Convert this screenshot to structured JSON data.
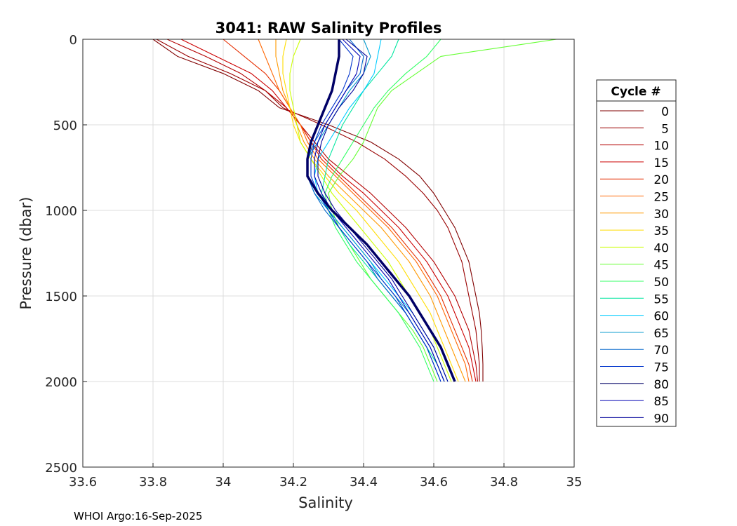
{
  "chart_data": {
    "type": "line",
    "title": "3041: RAW Salinity Profiles",
    "xlabel": "Salinity",
    "ylabel": "Pressure (dbar)",
    "xlim": [
      33.6,
      35
    ],
    "ylim": [
      0,
      2500
    ],
    "y_reversed": true,
    "grid": true,
    "xticks": [
      33.6,
      33.8,
      34,
      34.2,
      34.4,
      34.6,
      34.8,
      35
    ],
    "xtick_labels": [
      "33.6",
      "33.8",
      "34",
      "34.2",
      "34.4",
      "34.6",
      "34.8",
      "35"
    ],
    "yticks": [
      0,
      500,
      1000,
      1500,
      2000,
      2500
    ],
    "ytick_labels": [
      "0",
      "500",
      "1000",
      "1500",
      "2000",
      "2500"
    ],
    "legend_title": "Cycle #",
    "legend_position": "outside-right",
    "footer": "WHOI Argo:16-Sep-2025",
    "pressure": [
      0,
      100,
      200,
      300,
      400,
      500,
      600,
      700,
      800,
      900,
      1000,
      1100,
      1200,
      1300,
      1400,
      1500,
      1600,
      1700,
      1800,
      1900,
      2000
    ],
    "series": [
      {
        "name": "0",
        "color": "#800000",
        "values": [
          33.8,
          33.87,
          34.0,
          34.1,
          34.16,
          34.3,
          34.42,
          34.5,
          34.56,
          34.6,
          34.63,
          34.66,
          34.68,
          34.7,
          34.71,
          34.72,
          34.73,
          34.735,
          34.738,
          34.74,
          34.74
        ]
      },
      {
        "name": "5",
        "color": "#990000",
        "values": [
          33.81,
          33.9,
          34.02,
          34.12,
          34.17,
          34.28,
          34.38,
          34.46,
          34.52,
          34.57,
          34.61,
          34.64,
          34.66,
          34.68,
          34.69,
          34.7,
          34.71,
          34.72,
          34.725,
          34.73,
          34.73
        ]
      },
      {
        "name": "10",
        "color": "#b30000",
        "values": [
          33.84,
          33.95,
          34.05,
          34.12,
          34.18,
          34.22,
          34.26,
          34.3,
          34.36,
          34.42,
          34.47,
          34.52,
          34.56,
          34.6,
          34.63,
          34.66,
          34.68,
          34.7,
          34.71,
          34.72,
          34.725
        ]
      },
      {
        "name": "15",
        "color": "#cc0000",
        "values": [
          33.88,
          33.98,
          34.08,
          34.14,
          34.18,
          34.22,
          34.25,
          34.29,
          34.34,
          34.4,
          34.45,
          34.5,
          34.54,
          34.58,
          34.61,
          34.64,
          34.66,
          34.68,
          34.7,
          34.71,
          34.72
        ]
      },
      {
        "name": "20",
        "color": "#e62e00",
        "values": [
          34.0,
          34.06,
          34.12,
          34.16,
          34.19,
          34.22,
          34.25,
          34.28,
          34.33,
          34.38,
          34.43,
          34.48,
          34.52,
          34.56,
          34.59,
          34.62,
          34.64,
          34.66,
          34.68,
          34.7,
          34.71
        ]
      },
      {
        "name": "25",
        "color": "#ff6600",
        "values": [
          34.1,
          34.12,
          34.14,
          34.16,
          34.19,
          34.22,
          34.24,
          34.27,
          34.32,
          34.37,
          34.42,
          34.47,
          34.51,
          34.55,
          34.58,
          34.61,
          34.63,
          34.65,
          34.67,
          34.69,
          34.7
        ]
      },
      {
        "name": "30",
        "color": "#ff9900",
        "values": [
          34.15,
          34.15,
          34.16,
          34.17,
          34.19,
          34.21,
          34.23,
          34.26,
          34.3,
          34.35,
          34.4,
          34.45,
          34.49,
          34.53,
          34.56,
          34.59,
          34.61,
          34.63,
          34.65,
          34.67,
          34.69
        ]
      },
      {
        "name": "35",
        "color": "#ffdd00",
        "values": [
          34.18,
          34.17,
          34.17,
          34.18,
          34.19,
          34.2,
          34.22,
          34.25,
          34.29,
          34.33,
          34.38,
          34.42,
          34.46,
          34.5,
          34.53,
          34.56,
          34.59,
          34.61,
          34.63,
          34.65,
          34.67
        ]
      },
      {
        "name": "40",
        "color": "#ccff00",
        "values": [
          34.22,
          34.2,
          34.19,
          34.19,
          34.2,
          34.21,
          34.22,
          34.25,
          34.28,
          34.31,
          34.35,
          34.39,
          34.43,
          34.47,
          34.5,
          34.53,
          34.56,
          34.59,
          34.61,
          34.63,
          34.65
        ]
      },
      {
        "name": "45",
        "color": "#66ff33",
        "values": [
          34.95,
          34.62,
          34.55,
          34.48,
          34.44,
          34.42,
          34.4,
          34.37,
          34.33,
          34.3,
          34.31,
          34.33,
          34.36,
          34.39,
          34.42,
          34.46,
          34.5,
          34.54,
          34.57,
          34.59,
          34.61
        ]
      },
      {
        "name": "50",
        "color": "#33ff66",
        "values": [
          34.62,
          34.58,
          34.52,
          34.47,
          34.43,
          34.4,
          34.37,
          34.34,
          34.31,
          34.29,
          34.3,
          34.32,
          34.35,
          34.38,
          34.42,
          34.46,
          34.5,
          34.53,
          34.56,
          34.58,
          34.6
        ]
      },
      {
        "name": "55",
        "color": "#00e6a0",
        "values": [
          34.5,
          34.48,
          34.44,
          34.4,
          34.37,
          34.34,
          34.32,
          34.3,
          34.29,
          34.28,
          34.3,
          34.33,
          34.36,
          34.4,
          34.44,
          34.48,
          34.52,
          34.55,
          34.58,
          34.61,
          34.63
        ]
      },
      {
        "name": "60",
        "color": "#00ccff",
        "values": [
          34.45,
          34.44,
          34.43,
          34.4,
          34.36,
          34.33,
          34.3,
          34.27,
          34.26,
          34.27,
          34.3,
          34.34,
          34.38,
          34.42,
          34.46,
          34.5,
          34.54,
          34.57,
          34.6,
          34.62,
          34.64
        ]
      },
      {
        "name": "65",
        "color": "#0099cc",
        "values": [
          34.4,
          34.42,
          34.4,
          34.36,
          34.33,
          34.3,
          34.27,
          34.24,
          34.24,
          34.26,
          34.3,
          34.34,
          34.38,
          34.42,
          34.45,
          34.49,
          34.53,
          34.56,
          34.59,
          34.61,
          34.63
        ]
      },
      {
        "name": "70",
        "color": "#0066cc",
        "values": [
          34.36,
          34.4,
          34.39,
          34.35,
          34.32,
          34.29,
          34.26,
          34.24,
          34.24,
          34.26,
          34.29,
          34.33,
          34.37,
          34.41,
          34.44,
          34.48,
          34.52,
          34.55,
          34.58,
          34.6,
          34.62
        ]
      },
      {
        "name": "75",
        "color": "#0033cc",
        "values": [
          34.33,
          34.37,
          34.36,
          34.34,
          34.31,
          34.28,
          34.26,
          34.25,
          34.25,
          34.27,
          34.3,
          34.33,
          34.37,
          34.41,
          34.45,
          34.49,
          34.52,
          34.55,
          34.58,
          34.6,
          34.62
        ]
      },
      {
        "name": "80",
        "color": "#000066",
        "bold": true,
        "values": [
          34.33,
          34.33,
          34.32,
          34.31,
          34.29,
          34.27,
          34.25,
          34.24,
          34.24,
          34.27,
          34.31,
          34.36,
          34.41,
          34.45,
          34.49,
          34.53,
          34.56,
          34.59,
          34.62,
          34.64,
          34.66
        ]
      },
      {
        "name": "85",
        "color": "#0000b3",
        "values": [
          34.34,
          34.39,
          34.38,
          34.35,
          34.32,
          34.29,
          34.27,
          34.26,
          34.26,
          34.28,
          34.31,
          34.35,
          34.39,
          34.43,
          34.47,
          34.5,
          34.53,
          34.56,
          34.59,
          34.61,
          34.63
        ]
      },
      {
        "name": "90",
        "color": "#000099",
        "values": [
          34.35,
          34.41,
          34.4,
          34.37,
          34.33,
          34.3,
          34.28,
          34.27,
          34.27,
          34.29,
          34.32,
          34.36,
          34.4,
          34.44,
          34.48,
          34.51,
          34.54,
          34.57,
          34.6,
          34.62,
          34.64
        ]
      }
    ]
  }
}
